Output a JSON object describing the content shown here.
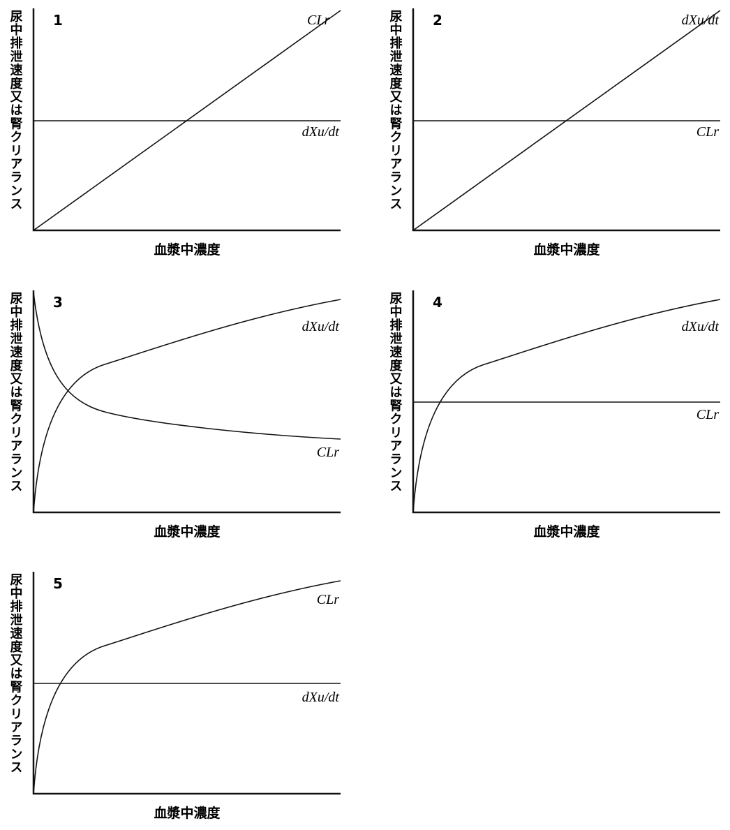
{
  "panels": [
    {
      "number": "1",
      "y_label": "尿中排泄速度又は腎クリアランス",
      "x_label": "血漿中濃度",
      "upper_curve_label": "CLr",
      "lower_curve_label": "dXu/dt"
    },
    {
      "number": "2",
      "y_label": "尿中排泄速度又は腎クリアランス",
      "x_label": "血漿中濃度",
      "upper_curve_label": "dXu/dt",
      "lower_curve_label": "CLr"
    },
    {
      "number": "3",
      "y_label": "尿中排泄速度又は腎クリアランス",
      "x_label": "血漿中濃度",
      "upper_curve_label": "dXu/dt",
      "lower_curve_label": "CLr"
    },
    {
      "number": "4",
      "y_label": "尿中排泄速度又は腎クリアランス",
      "x_label": "血漿中濃度",
      "upper_curve_label": "dXu/dt",
      "lower_curve_label": "CLr"
    },
    {
      "number": "5",
      "y_label": "尿中排泄速度又は腎クリアランス",
      "x_label": "血漿中濃度",
      "upper_curve_label": "CLr",
      "lower_curve_label": "dXu/dt"
    }
  ]
}
